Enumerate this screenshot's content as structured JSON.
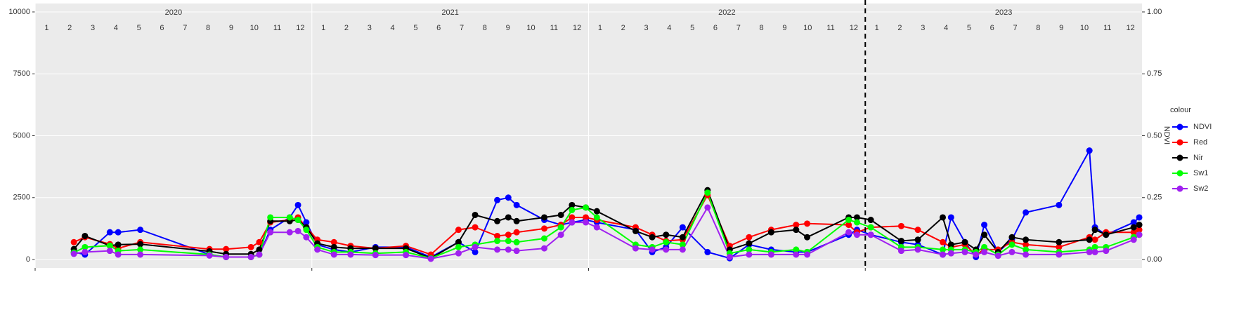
{
  "chart_data": {
    "type": "line",
    "y2_title": "NDVI",
    "legend_title": "colour",
    "legend": "right",
    "grid": true,
    "facets": [
      "2020",
      "2021",
      "2022",
      "2023"
    ],
    "month_labels": [
      "1",
      "2",
      "3",
      "4",
      "5",
      "6",
      "7",
      "8",
      "9",
      "10",
      "11",
      "12"
    ],
    "vline": 2023,
    "xlim": [
      2020,
      2024
    ],
    "xticks": [
      2020,
      2021,
      2022,
      2023
    ],
    "ylim": [
      0,
      10000
    ],
    "yticks": [
      0,
      2500,
      5000,
      7500,
      10000
    ],
    "y2lim": [
      0,
      1
    ],
    "y2ticks": [
      {
        "value": 0,
        "label": "0.00"
      },
      {
        "value": 0.25,
        "label": "0.25"
      },
      {
        "value": 0.5,
        "label": "0.50"
      },
      {
        "value": 0.75,
        "label": "0.75"
      },
      {
        "value": 1,
        "label": "1.00"
      }
    ],
    "x": [
      2020.14,
      2020.18,
      2020.27,
      2020.3,
      2020.38,
      2020.63,
      2020.69,
      2020.78,
      2020.81,
      2020.85,
      2020.92,
      2020.95,
      2020.98,
      2021.02,
      2021.08,
      2021.14,
      2021.23,
      2021.34,
      2021.43,
      2021.53,
      2021.59,
      2021.67,
      2021.71,
      2021.74,
      2021.84,
      2021.9,
      2021.94,
      2021.99,
      2022.03,
      2022.17,
      2022.23,
      2022.28,
      2022.34,
      2022.43,
      2022.51,
      2022.58,
      2022.66,
      2022.75,
      2022.79,
      2022.94,
      2022.97,
      2023.02,
      2023.13,
      2023.19,
      2023.28,
      2023.31,
      2023.36,
      2023.4,
      2023.43,
      2023.48,
      2023.53,
      2023.58,
      2023.7,
      2023.81,
      2023.83,
      2023.87,
      2023.97,
      2023.99
    ],
    "series": [
      {
        "name": "NDVI",
        "color": "#0000ff",
        "axis": "y2",
        "values": [
          0.03,
          0.02,
          0.11,
          0.11,
          0.12,
          0.02,
          0.01,
          0.01,
          0.02,
          0.12,
          0.17,
          0.22,
          0.15,
          0.06,
          0.04,
          0.03,
          0.05,
          0.05,
          0.01,
          0.07,
          0.03,
          0.24,
          0.25,
          0.22,
          0.16,
          0.14,
          0.15,
          0.16,
          0.15,
          0.12,
          0.03,
          0.05,
          0.13,
          0.03,
          0.005,
          0.06,
          0.04,
          0.03,
          0.03,
          0.1,
          0.12,
          0.1,
          0.07,
          0.06,
          0.02,
          0.17,
          0.07,
          0.01,
          0.14,
          0.03,
          0.08,
          0.19,
          0.22,
          0.44,
          0.13,
          0.1,
          0.15,
          0.17
        ]
      },
      {
        "name": "Red",
        "color": "#ff0000",
        "values": [
          700,
          900,
          620,
          450,
          700,
          420,
          420,
          500,
          700,
          1500,
          1600,
          1700,
          1300,
          800,
          700,
          550,
          450,
          550,
          200,
          1200,
          1300,
          950,
          1000,
          1100,
          1250,
          1400,
          1700,
          1700,
          1600,
          1300,
          1000,
          750,
          800,
          2600,
          550,
          900,
          1200,
          1400,
          1450,
          1400,
          1100,
          1300,
          1350,
          1200,
          700,
          500,
          600,
          200,
          400,
          400,
          700,
          600,
          500,
          900,
          800,
          1100,
          1100,
          1200
        ]
      },
      {
        "name": "Nir",
        "color": "#000000",
        "values": [
          420,
          950,
          560,
          600,
          620,
          330,
          220,
          220,
          400,
          1550,
          1550,
          1600,
          1300,
          650,
          500,
          450,
          450,
          450,
          50,
          700,
          1800,
          1550,
          1700,
          1550,
          1700,
          1800,
          2200,
          2100,
          1950,
          1150,
          900,
          1000,
          900,
          2800,
          400,
          650,
          1100,
          1200,
          900,
          1700,
          1700,
          1600,
          750,
          800,
          1700,
          600,
          700,
          400,
          1000,
          300,
          900,
          800,
          700,
          800,
          1200,
          1000,
          1300,
          1400
        ]
      },
      {
        "name": "Sw1",
        "color": "#00ff00",
        "values": [
          280,
          500,
          560,
          350,
          400,
          200,
          100,
          100,
          200,
          1700,
          1700,
          1600,
          1200,
          500,
          300,
          300,
          250,
          300,
          50,
          500,
          600,
          750,
          750,
          700,
          850,
          1300,
          2000,
          2100,
          1700,
          600,
          500,
          700,
          600,
          2700,
          250,
          400,
          300,
          400,
          300,
          1600,
          1500,
          1300,
          500,
          500,
          400,
          400,
          400,
          300,
          500,
          200,
          600,
          400,
          300,
          400,
          500,
          500,
          900,
          1000
        ]
      },
      {
        "name": "Sw2",
        "color": "#a020f0",
        "values": [
          230,
          300,
          350,
          200,
          200,
          160,
          100,
          100,
          200,
          1100,
          1100,
          1150,
          900,
          400,
          200,
          200,
          180,
          180,
          30,
          250,
          500,
          400,
          400,
          350,
          450,
          1000,
          1500,
          1500,
          1300,
          450,
          400,
          400,
          400,
          2100,
          100,
          200,
          200,
          200,
          200,
          1100,
          1000,
          1000,
          350,
          400,
          200,
          250,
          300,
          200,
          300,
          150,
          300,
          200,
          200,
          300,
          300,
          350,
          800,
          1000
        ]
      }
    ]
  }
}
